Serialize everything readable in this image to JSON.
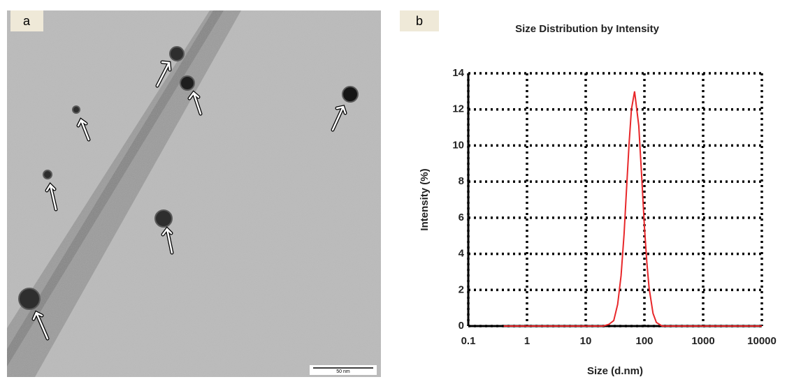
{
  "panel_labels": [
    "a",
    "b"
  ],
  "micrograph": {
    "scale_bar": "50 nm"
  },
  "chart_data": {
    "type": "line",
    "title": "Size Distribution by Intensity",
    "x_label": "Size (d.nm)",
    "y_label": "Intensity (%)",
    "x": [
      0.4,
      20,
      25,
      30,
      35,
      40,
      45,
      50,
      55,
      60,
      68,
      80,
      90,
      100,
      110,
      120,
      140,
      160,
      200,
      10000
    ],
    "y": [
      0,
      0,
      0.1,
      0.3,
      1.2,
      2.8,
      5.1,
      7.8,
      10.2,
      12,
      13,
      11.1,
      8.2,
      5.5,
      3.5,
      2.1,
      0.7,
      0.2,
      0,
      0
    ],
    "color": "#e8272a",
    "x_log": true,
    "xlim": [
      0.1,
      10000
    ],
    "xticks": [
      0.1,
      1,
      10,
      100,
      1000,
      10000
    ],
    "ylim": [
      0,
      14
    ],
    "yticks": [
      0,
      2,
      4,
      6,
      8,
      10,
      12,
      14
    ],
    "grid": true
  }
}
